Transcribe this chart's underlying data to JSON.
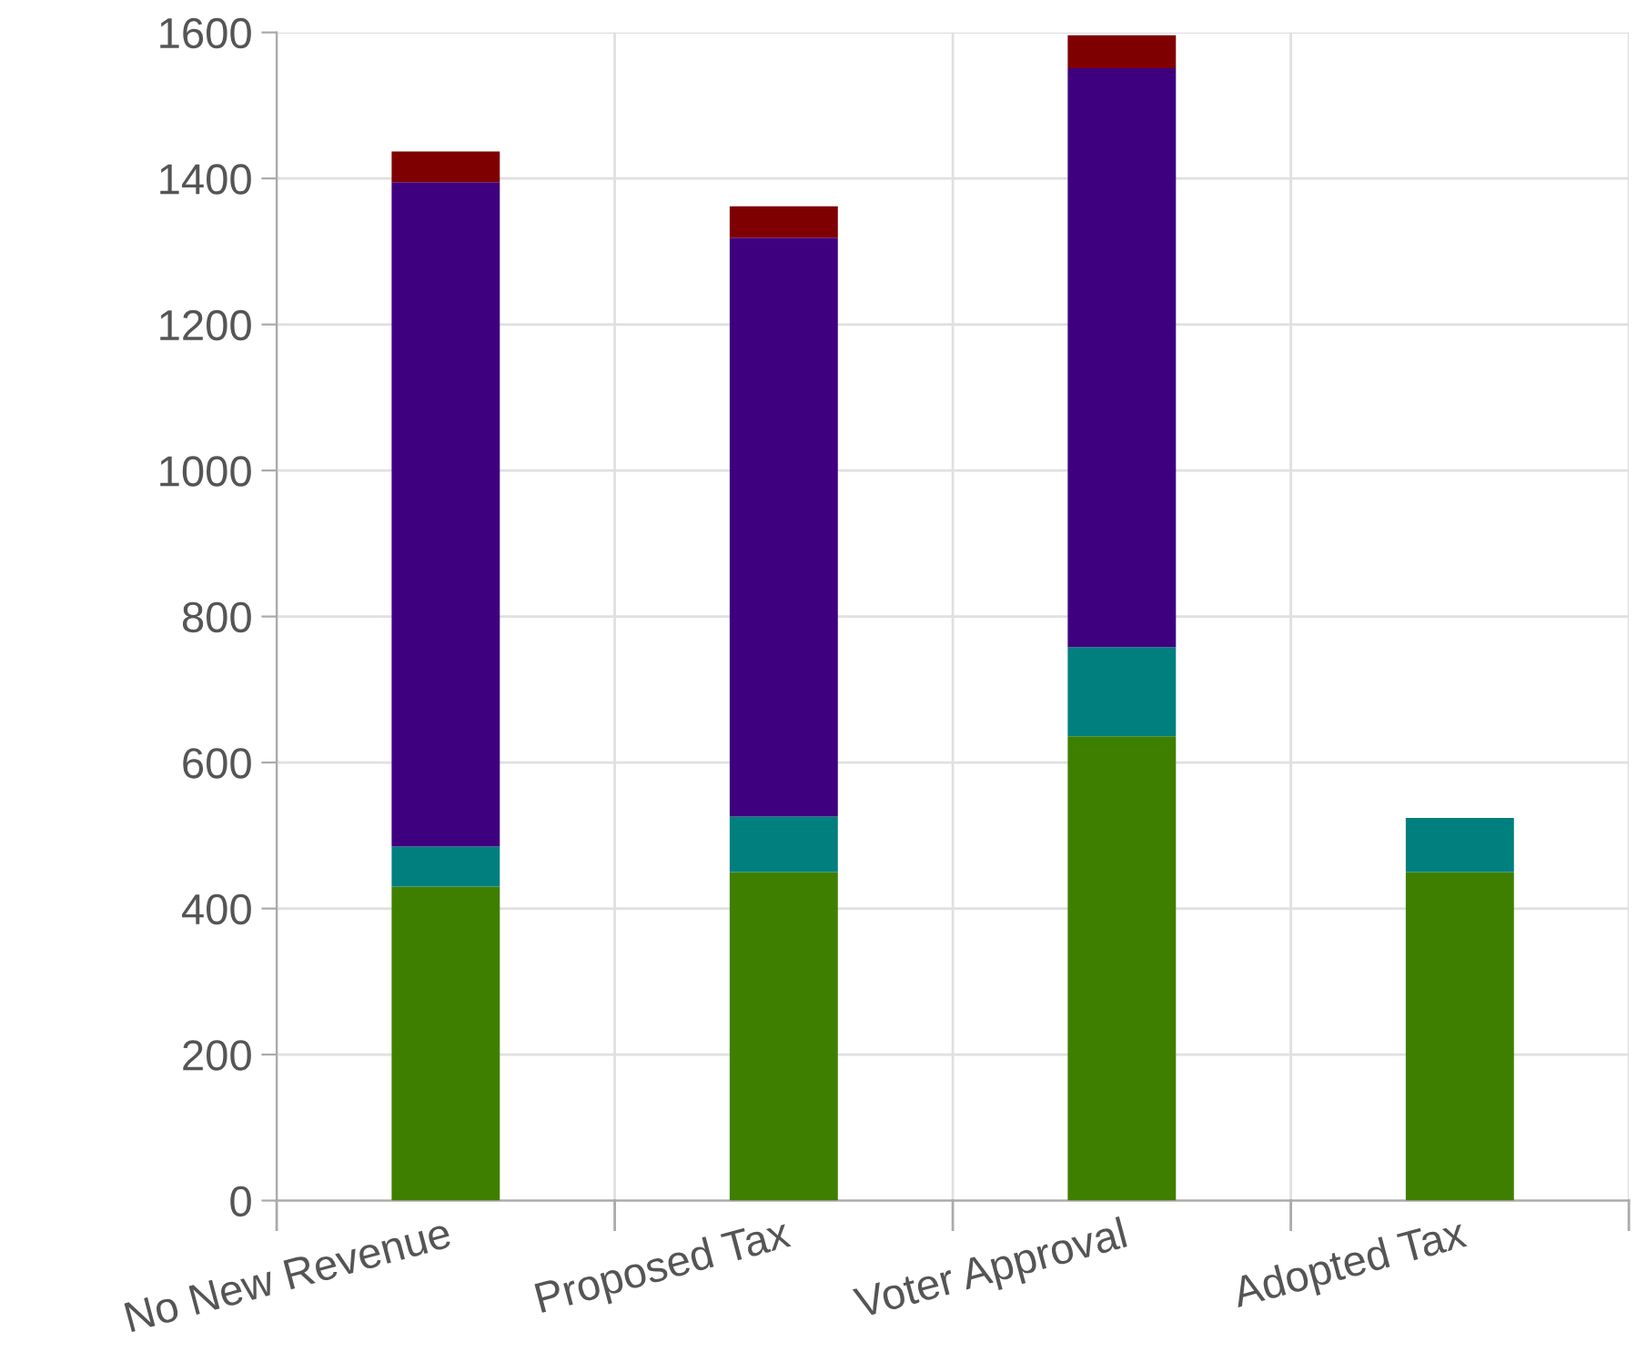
{
  "chart_data": {
    "type": "bar",
    "stacked": true,
    "categories": [
      "No New Revenue",
      "Proposed Tax",
      "Voter Approval",
      "Adopted Tax"
    ],
    "series": [
      {
        "color": "#3f7f00",
        "values": [
          430,
          450,
          636,
          450
        ]
      },
      {
        "color": "#007f7f",
        "values": [
          55,
          76,
          122,
          74
        ]
      },
      {
        "color": "#3f007f",
        "values": [
          910,
          793,
          793,
          null
        ]
      },
      {
        "color": "#7f0000",
        "values": [
          42,
          43,
          45,
          null
        ]
      }
    ],
    "ylim": [
      0,
      1600
    ],
    "yticks": [
      0,
      200,
      400,
      600,
      800,
      1000,
      1200,
      1400,
      1600
    ],
    "grid": true
  }
}
